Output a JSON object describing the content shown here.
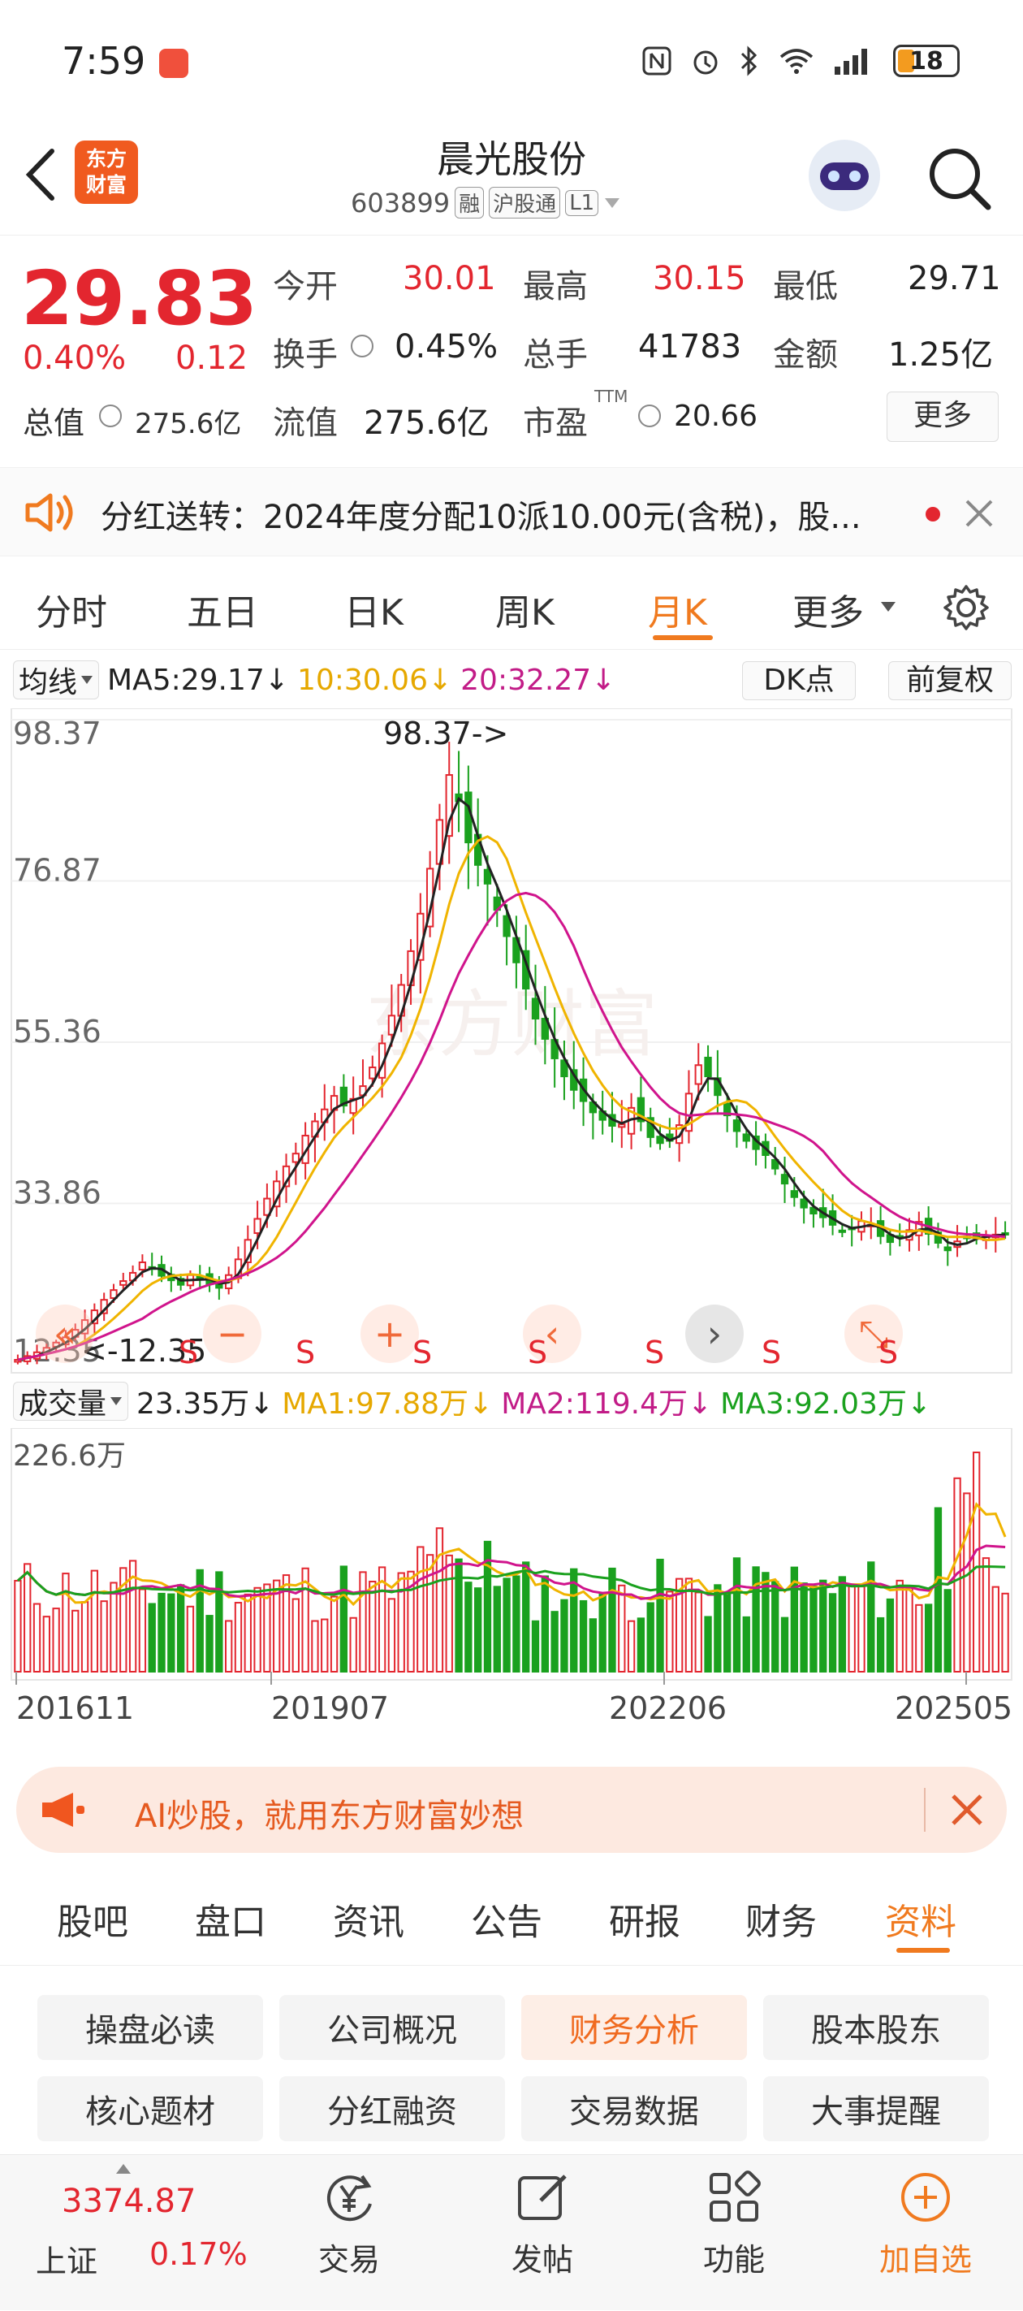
{
  "status": {
    "time": "7:59",
    "battery": "18"
  },
  "header": {
    "title": "晨光股份",
    "code": "603899",
    "tag1": "融",
    "tag2": "沪股通",
    "tag3": "L1",
    "logo_line1": "东方",
    "logo_line2": "财富"
  },
  "quote": {
    "price": "29.83",
    "change_pct": "0.40%",
    "change": "0.12",
    "open_label": "今开",
    "open": "30.01",
    "high_label": "最高",
    "high": "30.15",
    "low_label": "最低",
    "low": "29.71",
    "turnover_label": "换手",
    "turnover": "0.45%",
    "volume_label": "总手",
    "volume": "41783",
    "amount_label": "金额",
    "amount": "1.25亿",
    "mktcap_label": "总值",
    "mktcap": "275.6亿",
    "float_label": "流值",
    "float": "275.6亿",
    "pe_label": "市盈",
    "pe_sup": "TTM",
    "pe": "20.66",
    "more": "更多"
  },
  "notice": {
    "text": "分红送转：2024年度分配10派10.00元(含税)，股..."
  },
  "chart_tabs": [
    "分时",
    "五日",
    "日K",
    "周K",
    "月K",
    "更多"
  ],
  "chart_tabs_active": 4,
  "ma": {
    "label": "均线",
    "ma5": "MA5:29.17↓",
    "ma10": "10:30.06↓",
    "ma20": "20:32.27↓",
    "dk": "DK点",
    "adj": "前复权"
  },
  "price_axis": [
    "98.37",
    "76.87",
    "55.36",
    "33.86",
    "12.35"
  ],
  "max_annot": "98.37->",
  "min_annot": "<-12.35",
  "s_marks": [
    "S",
    "S",
    "S",
    "S",
    "S",
    "S",
    "S"
  ],
  "vol": {
    "label": "成交量",
    "val": "23.35万↓",
    "ma1": "MA1:97.88万↓",
    "ma2": "MA2:119.4万↓",
    "ma3": "MA3:92.03万↓",
    "max": "226.6万"
  },
  "dates": [
    "201611",
    "201907",
    "202206",
    "202505"
  ],
  "ai_banner": "AI炒股，就用东方财富妙想",
  "sec_tabs": [
    "股吧",
    "盘口",
    "资讯",
    "公告",
    "研报",
    "财务",
    "资料"
  ],
  "sec_active": 6,
  "chips": [
    "操盘必读",
    "公司概况",
    "财务分析",
    "股本股东",
    "核心题材",
    "分红融资",
    "交易数据",
    "大事提醒"
  ],
  "bottom": {
    "index_val": "3374.87",
    "index_name": "上证",
    "index_pct": "0.17%",
    "trade": "交易",
    "post": "发帖",
    "func": "功能",
    "add": "加自选"
  },
  "colors": {
    "up": "#e3262f",
    "down": "#1aa11e",
    "accent": "#ff6a00",
    "ma5": "#222222",
    "ma10": "#f0b400",
    "ma20": "#d0148c"
  },
  "chart_data": {
    "type": "candlestick",
    "period": "monthly",
    "x_start": "201611",
    "x_end": "202505",
    "ylim": [
      12.35,
      98.37
    ],
    "close": [
      13.0,
      13.5,
      14.0,
      14.6,
      15.3,
      16.0,
      17.0,
      18.3,
      19.6,
      21.0,
      22.3,
      23.5,
      24.6,
      26.0,
      25.1,
      24.2,
      23.6,
      23.0,
      24.3,
      23.8,
      23.1,
      22.6,
      24.3,
      26.4,
      29.0,
      31.8,
      34.5,
      36.8,
      38.8,
      40.5,
      42.9,
      44.8,
      46.4,
      48.2,
      46.9,
      47.8,
      49.5,
      52.0,
      55.2,
      58.9,
      63.0,
      67.5,
      72.5,
      78.5,
      85.0,
      91.0,
      87.5,
      82.0,
      79.0,
      76.5,
      73.0,
      69.5,
      66.0,
      62.5,
      58.5,
      55.8,
      53.2,
      50.8,
      49.0,
      47.5,
      46.0,
      45.0,
      44.2,
      44.4,
      46.6,
      44.8,
      42.7,
      41.9,
      42.2,
      44.3,
      48.5,
      52.3,
      50.8,
      48.3,
      45.6,
      43.5,
      42.2,
      41.1,
      40.3,
      38.5,
      36.5,
      34.7,
      33.3,
      32.5,
      32.0,
      31.0,
      30.2,
      30.5,
      31.5,
      31.0,
      29.5,
      28.7,
      29.3,
      30.3,
      31.4,
      29.8,
      28.6,
      27.6,
      28.8,
      29.2,
      29.4,
      29.6,
      29.7,
      29.83
    ]
  }
}
